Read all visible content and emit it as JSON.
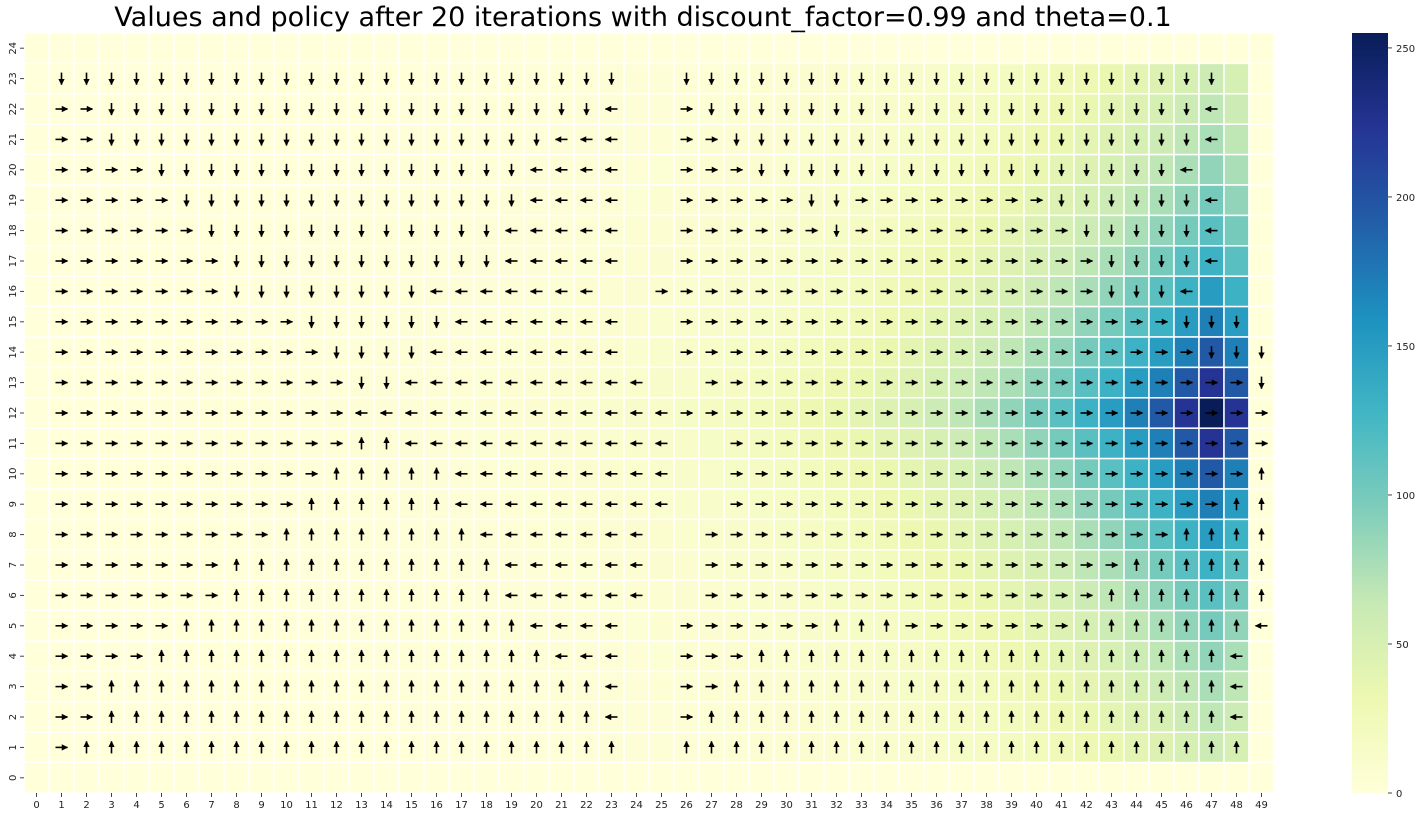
{
  "chart_data": {
    "type": "heatmap",
    "title": "Values and policy after 20 iterations with discount_factor=0.99 and theta=0.1",
    "xlabel": "",
    "ylabel": "",
    "x_ticks": [
      "0",
      "1",
      "2",
      "3",
      "4",
      "5",
      "6",
      "7",
      "8",
      "9",
      "10",
      "11",
      "12",
      "13",
      "14",
      "15",
      "16",
      "17",
      "18",
      "19",
      "20",
      "21",
      "22",
      "23",
      "24",
      "25",
      "26",
      "27",
      "28",
      "29",
      "30",
      "31",
      "32",
      "33",
      "34",
      "35",
      "36",
      "37",
      "38",
      "39",
      "40",
      "41",
      "42",
      "43",
      "44",
      "45",
      "46",
      "47",
      "48",
      "49"
    ],
    "y_ticks_top_to_bottom": [
      "24",
      "23",
      "22",
      "21",
      "20",
      "19",
      "18",
      "17",
      "16",
      "15",
      "14",
      "13",
      "12",
      "11",
      "10",
      "9",
      "8",
      "7",
      "6",
      "5",
      "4",
      "3",
      "2",
      "1",
      "0"
    ],
    "colorbar": {
      "colormap": "YlGnBu",
      "vmin": 0,
      "vmax": 255,
      "ticks": [
        "0",
        "50",
        "100",
        "150",
        "200",
        "250"
      ]
    },
    "value_model": {
      "peak_cell": {
        "x": 47,
        "y": 12
      },
      "peak_value": 255,
      "decay_per_step": 0.875,
      "open_rows_in_columns_25_26": [
        12
      ],
      "note_boundary": "row 0, row 24, column 0 and column 49 are border cells with value 0"
    },
    "policy": {
      "legend": {
        "u": "up",
        "d": "down",
        "l": "left",
        "r": "right",
        ".": "none"
      },
      "rows_top_to_bottom": [
        "..................................................",
        ".ddddddddddddddddddddddd..dddddddddddddddddddddd.",
        ".rrddddddddddddddddddddl..rddddddddddddddddddddl.",
        ".rrddddddddddddddddddlll..rrdddddddddddddddddddl.",
        ".rrrrdddddddddddddddllll..rrrdddddddddddddddddl.",
        ".rrrrrddddddddddddddllll..rrrrrddrrrrrrrrddddddl.",
        ".rrrrrrddddddddddddlllll..rrrrrrdrrrrrrrrrdddddl.",
        ".rrrrrrrdddddddddddlllll..rrrrrrrrrrrrrrrrrddddl.",
        ".rrrrrrrddddddddlllllll..rrrrrrrrrrrrrrrrrrdddl.",
        ".rrrrrrrrrrddddddlllllll..rrrrrrrrrrrrrrrrrrrrddd.",
        ".rrrrrrrrrrrddddllllllll..rrrrrrrrrrrrrrrrrrrrrddd.",
        ".rrrrrrrrrrrrddllllllllll..rrrrrrrrrrrrrrrrrrrrrrdd.",
        ".rrrrrrrrrrrrlllllllllllllrrrrrrrrrrrrrrrrrrrrrrrrl.",
        ".rrrrrrrrrrrruulllllllllll..rrrrrrrrrrrrrrrrrrrrrruu.",
        ".rrrrrrrrrrruuuuulllllllll..rrrrrrrrrrrrrrrrrrrrruuu.",
        ".rrrrrrrrrruuuuuulllllllll..rrrrrrrrrrrrrrrrrrrruuuu.",
        ".rrrrrrrrruuuuuuuulllllll..rrrrrrrrrrrrrrrrrrruuuuu.",
        ".rrrrrrruuuuuuuuuuullllll..rrrrrrrrrrrrrrrrruuuuuuu.",
        ".rrrrrrruuuuuuuuuuullllll..rrrrrrrrrrrrrrrruuuuuuul.",
        ".rrrrruuuuuuuuuuuuuullll..rrrrrruuurrrrrrruuuuuuul.",
        ".rrrruuuuuuuuuuuuuuuulll..rrruuuuuuuuuuuuuuuuuuul.",
        ".rruuuuuuuuuuuuuuuuuuuul..rruuuuuuuuuuuuuuuuuuuul.",
        ".rruuuuuuuuuuuuuuuuuuuul..ruuuuuuuuuuuuuuuuuuuuul.",
        ".ruuuuuuuuuuuuuuuuuuuuuu..uuuuuuuuuuuuuuuuuuuuuuu.",
        ".................................................."
      ]
    }
  }
}
